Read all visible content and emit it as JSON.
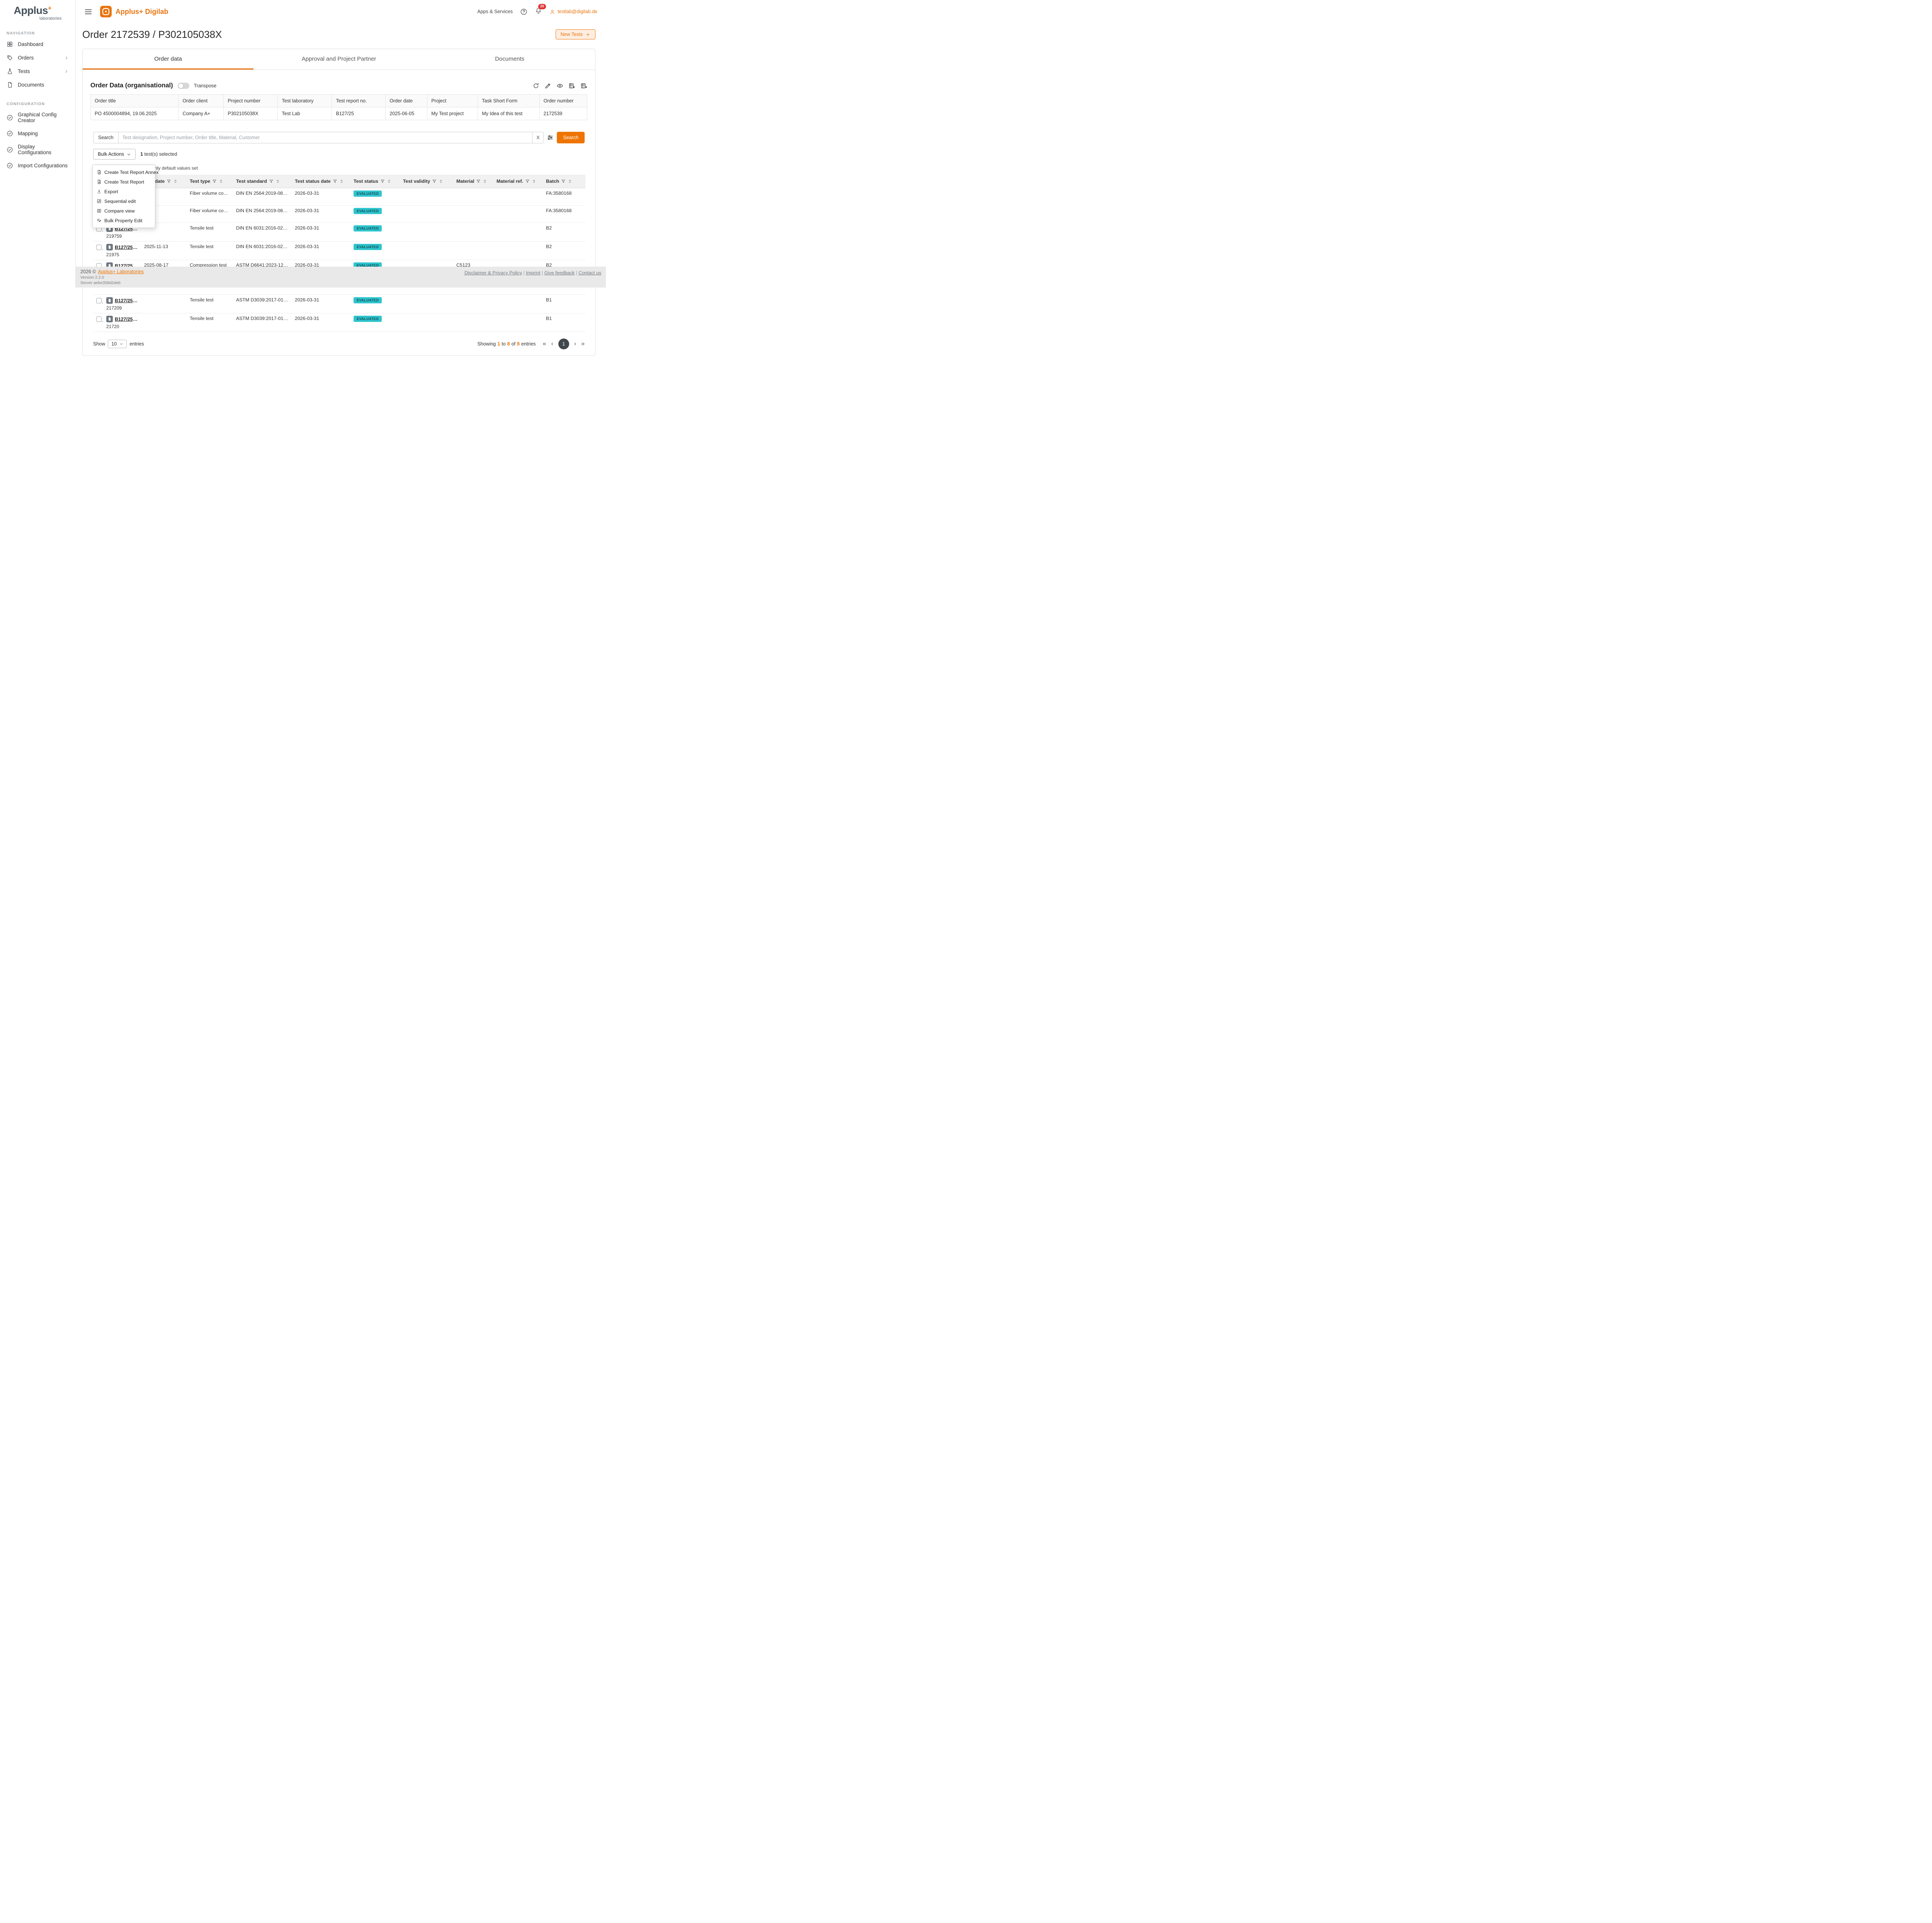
{
  "colors": {
    "accent": "#e87511",
    "badge": "#2fc5ce"
  },
  "sidebar": {
    "logo_text": "Applus",
    "logo_plus": "+",
    "logo_subtext": "laboratories",
    "sections": [
      {
        "title": "NAVIGATION",
        "items": [
          {
            "label": "Dashboard",
            "icon": "dashboard-icon",
            "chevron": false
          },
          {
            "label": "Orders",
            "icon": "orders-icon",
            "chevron": true
          },
          {
            "label": "Tests",
            "icon": "tests-icon",
            "chevron": true
          },
          {
            "label": "Documents",
            "icon": "documents-icon",
            "chevron": false
          }
        ]
      },
      {
        "title": "CONFIGURATION",
        "items": [
          {
            "label": "Graphical Config Creator",
            "icon": "check-circle-icon",
            "chevron": false
          },
          {
            "label": "Mapping",
            "icon": "check-circle-icon",
            "chevron": false
          },
          {
            "label": "Display Configurations",
            "icon": "check-circle-icon",
            "chevron": false
          },
          {
            "label": "Import Configurations",
            "icon": "check-circle-icon",
            "chevron": false
          }
        ]
      }
    ]
  },
  "header": {
    "app_name": "Applus+ Digilab",
    "apps_services_label": "Apps & Services",
    "notification_count": "20",
    "user_email": "testlab@digilab.de"
  },
  "page": {
    "title": "Order 2172539 / P302105038X",
    "new_tests_label": "New Tests"
  },
  "tabs": [
    {
      "label": "Order data",
      "active": true
    },
    {
      "label": "Approval and Project Partner",
      "active": false
    },
    {
      "label": "Documents",
      "active": false
    }
  ],
  "order_panel": {
    "title": "Order Data (organisational)",
    "transpose_label": "Transpose",
    "columns": [
      "Order title",
      "Order client",
      "Project number",
      "Test laboratory",
      "Test report no.",
      "Order date",
      "Project",
      "Task Short Form",
      "Order number"
    ],
    "row": [
      "PO 4500004894, 19.06.2025",
      "Company A+",
      "P302105038X",
      "Test Lab",
      "B127/25",
      "2025-06-05",
      "My Test project",
      "My Idea of this test",
      "2172539"
    ]
  },
  "search": {
    "label": "Search",
    "placeholder": "Test designation, Project number, Order title, Material, Customer",
    "clear_label": "X",
    "button_label": "Search"
  },
  "bulk": {
    "button_label": "Bulk Actions",
    "selected_count": "1",
    "selected_text": "test(s) selected",
    "obscured_text": "nly default values set",
    "menu": [
      {
        "label": "Create Test Report Annex",
        "icon": "report-annex-icon"
      },
      {
        "label": "Create Test Report",
        "icon": "report-icon"
      },
      {
        "label": "Export",
        "icon": "export-icon"
      },
      {
        "label": "Sequential edit",
        "icon": "sequential-edit-icon"
      },
      {
        "label": "Compare view",
        "icon": "compare-icon"
      },
      {
        "label": "Bulk Property Edit",
        "icon": "bulk-edit-icon"
      }
    ]
  },
  "tests_table": {
    "columns": [
      {
        "label": "Test date",
        "key": "date"
      },
      {
        "label": "Test type",
        "key": "type"
      },
      {
        "label": "Test standard",
        "key": "standard"
      },
      {
        "label": "Test status date",
        "key": "status_date"
      },
      {
        "label": "Test status",
        "key": "status"
      },
      {
        "label": "Test validity",
        "key": "validity"
      },
      {
        "label": "Material",
        "key": "material"
      },
      {
        "label": "Material ref.",
        "key": "material_ref"
      },
      {
        "label": "Batch",
        "key": "batch"
      }
    ],
    "rows": [
      {
        "designation": "",
        "sub": "",
        "date": "",
        "type": "Fiber volume content",
        "standard": "DIN EN 2564:2019-08 | Test...",
        "status_date": "2026-03-31",
        "status": "EVALUATED",
        "validity": "",
        "material": "",
        "material_ref": "",
        "batch": "FA:3580168"
      },
      {
        "designation": "",
        "sub": "",
        "date": "",
        "type": "Fiber volume content",
        "standard": "DIN EN 2564:2019-08 | Test...",
        "status_date": "2026-03-31",
        "status": "EVALUATED",
        "validity": "",
        "material": "",
        "material_ref": "",
        "batch": "FA:3580168"
      },
      {
        "designation": "B127/25-9...",
        "sub": "219759",
        "date": "",
        "type": "Tensile test",
        "standard": "DIN EN 6031:2016-02 | Test...",
        "status_date": "2026-03-31",
        "status": "EVALUATED",
        "validity": "",
        "material": "",
        "material_ref": "",
        "batch": "B2"
      },
      {
        "designation": "B127/25-9...",
        "sub": "21975",
        "date": "2025-11-13",
        "type": "Tensile test",
        "standard": "DIN EN 6031:2016-02 | Test...",
        "status_date": "2026-03-31",
        "status": "EVALUATED",
        "validity": "",
        "material": "",
        "material_ref": "",
        "batch": "B2"
      },
      {
        "designation": "B127/25-9...",
        "sub": "",
        "date": "2025-08-17",
        "type": "Compression test",
        "standard": "ASTM D6641:2023-12 | Test...",
        "status_date": "2026-03-31",
        "status": "EVALUATED",
        "validity": "",
        "material": "C5123",
        "material_ref": "",
        "batch": "B2"
      },
      {
        "designation": "",
        "sub": "21810",
        "date": "",
        "type": "",
        "standard": "",
        "status_date": "",
        "status": "",
        "validity": "",
        "material": "",
        "material_ref": "",
        "batch": ""
      },
      {
        "designation": "B127/25-9...",
        "sub": "217209",
        "date": "",
        "type": "Tensile test",
        "standard": "ASTM D3039:2017-01 | Test...",
        "status_date": "2026-03-31",
        "status": "EVALUATED",
        "validity": "",
        "material": "",
        "material_ref": "",
        "batch": "B1"
      },
      {
        "designation": "B127/25-9...",
        "sub": "21720",
        "date": "",
        "type": "Tensile test",
        "standard": "ASTM D3039:2017-01 | Test...",
        "status_date": "2026-03-31",
        "status": "EVALUATED",
        "validity": "",
        "material": "",
        "material_ref": "",
        "batch": "B1"
      }
    ],
    "footer": {
      "show_label": "Show",
      "page_size": "10",
      "entries_label": "entries",
      "showing_prefix": "Showing",
      "from": "1",
      "to_word": "to",
      "to": "8",
      "of_word": "of",
      "total": "8",
      "entries_word": "entries",
      "current_page": "1"
    }
  },
  "footer_bar": {
    "copyright_prefix": "2026 ©",
    "company_link": "Applus+ Laboratories",
    "version": "Version 2.2.0",
    "server": "Server aebe358d2deb",
    "links": [
      "Disclaimer & Privacy Policy",
      "Imprint",
      "Give feedback",
      "Contact us"
    ]
  }
}
